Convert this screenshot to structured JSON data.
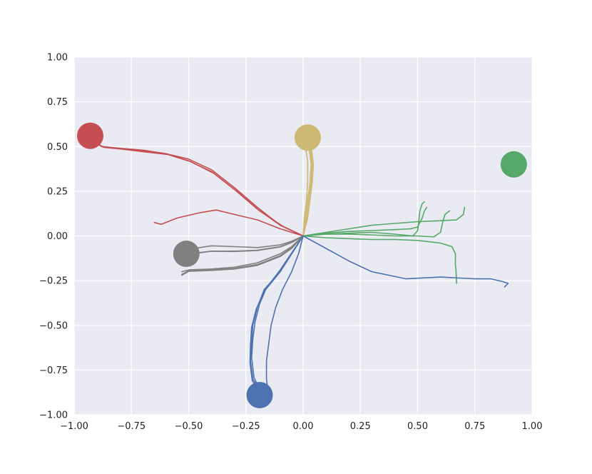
{
  "chart_data": {
    "type": "line",
    "title": "",
    "xlabel": "",
    "ylabel": "",
    "xlim": [
      -1.0,
      1.0
    ],
    "ylim": [
      -1.0,
      1.0
    ],
    "grid": true,
    "legend": "none",
    "x_ticks": [
      "−1.00",
      "−0.75",
      "−0.50",
      "−0.25",
      "0.00",
      "0.25",
      "0.50",
      "0.75",
      "1.00"
    ],
    "y_ticks": [
      "1.00",
      "0.75",
      "0.50",
      "0.25",
      "0.00",
      "−0.25",
      "−0.50",
      "−0.75",
      "−1.00"
    ],
    "colors": {
      "red": "#c44e52",
      "gold": "#ccb974",
      "green": "#55a868",
      "gray": "#808080",
      "blue": "#4c72b0",
      "background": "#eaeaf2",
      "grid": "#ffffff"
    },
    "targets": [
      {
        "color": "red",
        "x": -0.93,
        "y": 0.56
      },
      {
        "color": "gold",
        "x": 0.02,
        "y": 0.55
      },
      {
        "color": "green",
        "x": 0.92,
        "y": 0.4
      },
      {
        "color": "gray",
        "x": -0.51,
        "y": -0.1
      },
      {
        "color": "blue",
        "x": -0.19,
        "y": -0.89
      }
    ],
    "series": [
      {
        "color": "red",
        "points": [
          [
            0,
            0
          ],
          [
            -0.1,
            0.06
          ],
          [
            -0.2,
            0.15
          ],
          [
            -0.3,
            0.26
          ],
          [
            -0.4,
            0.36
          ],
          [
            -0.5,
            0.42
          ],
          [
            -0.6,
            0.46
          ],
          [
            -0.7,
            0.475
          ],
          [
            -0.8,
            0.49
          ],
          [
            -0.88,
            0.5
          ],
          [
            -0.93,
            0.54
          ]
        ]
      },
      {
        "color": "red",
        "points": [
          [
            0,
            0
          ],
          [
            -0.1,
            0.06
          ],
          [
            -0.2,
            0.16
          ],
          [
            -0.3,
            0.27
          ],
          [
            -0.4,
            0.37
          ],
          [
            -0.5,
            0.43
          ],
          [
            -0.6,
            0.46
          ],
          [
            -0.7,
            0.48
          ],
          [
            -0.8,
            0.49
          ],
          [
            -0.88,
            0.5
          ],
          [
            -0.93,
            0.55
          ]
        ]
      },
      {
        "color": "red",
        "points": [
          [
            0,
            0
          ],
          [
            -0.09,
            0.055
          ],
          [
            -0.19,
            0.14
          ],
          [
            -0.29,
            0.25
          ],
          [
            -0.39,
            0.35
          ],
          [
            -0.49,
            0.415
          ],
          [
            -0.59,
            0.455
          ],
          [
            -0.69,
            0.47
          ],
          [
            -0.79,
            0.485
          ],
          [
            -0.87,
            0.495
          ],
          [
            -0.92,
            0.53
          ]
        ]
      },
      {
        "color": "red",
        "points": [
          [
            0,
            0
          ],
          [
            -0.1,
            0.04
          ],
          [
            -0.2,
            0.09
          ],
          [
            -0.3,
            0.12
          ],
          [
            -0.38,
            0.145
          ],
          [
            -0.45,
            0.13
          ],
          [
            -0.55,
            0.1
          ],
          [
            -0.62,
            0.065
          ],
          [
            -0.65,
            0.075
          ]
        ]
      },
      {
        "color": "gold",
        "points": [
          [
            0,
            0
          ],
          [
            0.01,
            0.1
          ],
          [
            0.02,
            0.2
          ],
          [
            0.03,
            0.3
          ],
          [
            0.035,
            0.4
          ],
          [
            0.025,
            0.5
          ],
          [
            0.02,
            0.55
          ]
        ]
      },
      {
        "color": "gold",
        "points": [
          [
            0,
            0
          ],
          [
            0.015,
            0.1
          ],
          [
            0.025,
            0.2
          ],
          [
            0.035,
            0.3
          ],
          [
            0.04,
            0.4
          ],
          [
            0.03,
            0.5
          ],
          [
            0.025,
            0.55
          ]
        ]
      },
      {
        "color": "gold",
        "points": [
          [
            0,
            0
          ],
          [
            0.005,
            0.1
          ],
          [
            0.015,
            0.2
          ],
          [
            0.02,
            0.3
          ],
          [
            0.02,
            0.42
          ],
          [
            0.01,
            0.5
          ],
          [
            0.015,
            0.55
          ]
        ]
      },
      {
        "color": "gold",
        "points": [
          [
            0,
            0
          ],
          [
            0.02,
            0.1
          ],
          [
            0.03,
            0.2
          ],
          [
            0.04,
            0.3
          ],
          [
            0.045,
            0.4
          ],
          [
            0.035,
            0.5
          ],
          [
            0.03,
            0.55
          ]
        ]
      },
      {
        "color": "green",
        "points": [
          [
            0,
            0
          ],
          [
            0.1,
            0.01
          ],
          [
            0.2,
            0.015
          ],
          [
            0.3,
            0.02
          ],
          [
            0.4,
            0.01
          ],
          [
            0.48,
            0.0
          ],
          [
            0.5,
            0.03
          ],
          [
            0.505,
            0.08
          ],
          [
            0.51,
            0.14
          ],
          [
            0.52,
            0.18
          ],
          [
            0.53,
            0.19
          ]
        ]
      },
      {
        "color": "green",
        "points": [
          [
            0,
            0
          ],
          [
            0.1,
            0.015
          ],
          [
            0.2,
            0.025
          ],
          [
            0.3,
            0.03
          ],
          [
            0.4,
            0.035
          ],
          [
            0.47,
            0.04
          ],
          [
            0.5,
            0.05
          ],
          [
            0.52,
            0.1
          ],
          [
            0.53,
            0.14
          ],
          [
            0.54,
            0.16
          ]
        ]
      },
      {
        "color": "green",
        "points": [
          [
            0,
            0
          ],
          [
            0.1,
            0.02
          ],
          [
            0.2,
            0.04
          ],
          [
            0.3,
            0.06
          ],
          [
            0.4,
            0.07
          ],
          [
            0.5,
            0.08
          ],
          [
            0.6,
            0.085
          ],
          [
            0.67,
            0.09
          ],
          [
            0.7,
            0.12
          ],
          [
            0.705,
            0.16
          ]
        ]
      },
      {
        "color": "green",
        "points": [
          [
            0,
            0
          ],
          [
            0.1,
            0.01
          ],
          [
            0.2,
            0.01
          ],
          [
            0.3,
            0.005
          ],
          [
            0.4,
            0.0
          ],
          [
            0.5,
            0.0
          ],
          [
            0.57,
            -0.005
          ],
          [
            0.6,
            0.02
          ],
          [
            0.61,
            0.08
          ],
          [
            0.62,
            0.12
          ],
          [
            0.64,
            0.14
          ]
        ]
      },
      {
        "color": "green",
        "points": [
          [
            0,
            0
          ],
          [
            0.1,
            -0.01
          ],
          [
            0.2,
            -0.015
          ],
          [
            0.3,
            -0.02
          ],
          [
            0.4,
            -0.02
          ],
          [
            0.5,
            -0.025
          ],
          [
            0.6,
            -0.04
          ],
          [
            0.65,
            -0.06
          ],
          [
            0.665,
            -0.1
          ],
          [
            0.665,
            -0.16
          ],
          [
            0.668,
            -0.2
          ],
          [
            0.67,
            -0.265
          ]
        ]
      },
      {
        "color": "gray",
        "points": [
          [
            0,
            0
          ],
          [
            -0.05,
            -0.03
          ],
          [
            -0.1,
            -0.05
          ],
          [
            -0.2,
            -0.065
          ],
          [
            -0.3,
            -0.06
          ],
          [
            -0.4,
            -0.055
          ],
          [
            -0.5,
            -0.075
          ]
        ]
      },
      {
        "color": "gray",
        "points": [
          [
            0,
            0
          ],
          [
            -0.05,
            -0.035
          ],
          [
            -0.1,
            -0.06
          ],
          [
            -0.2,
            -0.08
          ],
          [
            -0.3,
            -0.085
          ],
          [
            -0.4,
            -0.085
          ],
          [
            -0.5,
            -0.1
          ]
        ]
      },
      {
        "color": "gray",
        "points": [
          [
            0,
            0
          ],
          [
            -0.05,
            -0.037
          ],
          [
            -0.1,
            -0.062
          ],
          [
            -0.2,
            -0.082
          ],
          [
            -0.3,
            -0.087
          ],
          [
            -0.4,
            -0.086
          ],
          [
            -0.5,
            -0.103
          ]
        ]
      },
      {
        "color": "gray",
        "points": [
          [
            0,
            0
          ],
          [
            -0.05,
            -0.06
          ],
          [
            -0.1,
            -0.1
          ],
          [
            -0.2,
            -0.15
          ],
          [
            -0.3,
            -0.175
          ],
          [
            -0.4,
            -0.185
          ],
          [
            -0.5,
            -0.19
          ],
          [
            -0.53,
            -0.2
          ]
        ]
      },
      {
        "color": "gray",
        "points": [
          [
            0,
            0
          ],
          [
            -0.05,
            -0.065
          ],
          [
            -0.1,
            -0.11
          ],
          [
            -0.2,
            -0.16
          ],
          [
            -0.3,
            -0.182
          ],
          [
            -0.4,
            -0.19
          ],
          [
            -0.5,
            -0.195
          ],
          [
            -0.53,
            -0.215
          ]
        ]
      },
      {
        "color": "gray",
        "points": [
          [
            0,
            0
          ],
          [
            -0.05,
            -0.07
          ],
          [
            -0.1,
            -0.115
          ],
          [
            -0.2,
            -0.165
          ],
          [
            -0.3,
            -0.185
          ],
          [
            -0.4,
            -0.193
          ],
          [
            -0.5,
            -0.198
          ],
          [
            -0.53,
            -0.22
          ]
        ]
      },
      {
        "color": "blue",
        "points": [
          [
            0,
            0
          ],
          [
            -0.1,
            -0.2
          ],
          [
            -0.17,
            -0.3
          ],
          [
            -0.2,
            -0.4
          ],
          [
            -0.22,
            -0.5
          ],
          [
            -0.225,
            -0.6
          ],
          [
            -0.23,
            -0.7
          ],
          [
            -0.22,
            -0.8
          ],
          [
            -0.19,
            -0.86
          ]
        ]
      },
      {
        "color": "blue",
        "points": [
          [
            0,
            0
          ],
          [
            -0.1,
            -0.19
          ],
          [
            -0.16,
            -0.29
          ],
          [
            -0.19,
            -0.38
          ],
          [
            -0.21,
            -0.48
          ],
          [
            -0.22,
            -0.58
          ],
          [
            -0.225,
            -0.68
          ],
          [
            -0.215,
            -0.79
          ],
          [
            -0.19,
            -0.86
          ]
        ]
      },
      {
        "color": "blue",
        "points": [
          [
            0,
            0
          ],
          [
            -0.1,
            -0.2
          ],
          [
            -0.17,
            -0.31
          ],
          [
            -0.205,
            -0.41
          ],
          [
            -0.225,
            -0.51
          ],
          [
            -0.23,
            -0.61
          ],
          [
            -0.232,
            -0.71
          ],
          [
            -0.222,
            -0.81
          ],
          [
            -0.19,
            -0.87
          ]
        ]
      },
      {
        "color": "blue",
        "points": [
          [
            0,
            0
          ],
          [
            -0.02,
            -0.1
          ],
          [
            -0.05,
            -0.2
          ],
          [
            -0.09,
            -0.3
          ],
          [
            -0.12,
            -0.4
          ],
          [
            -0.14,
            -0.5
          ],
          [
            -0.15,
            -0.6
          ],
          [
            -0.16,
            -0.7
          ],
          [
            -0.16,
            -0.8
          ],
          [
            -0.155,
            -0.85
          ]
        ]
      },
      {
        "color": "blue",
        "points": [
          [
            0,
            0
          ],
          [
            0.1,
            -0.07
          ],
          [
            0.2,
            -0.14
          ],
          [
            0.3,
            -0.2
          ],
          [
            0.45,
            -0.24
          ],
          [
            0.6,
            -0.23
          ],
          [
            0.75,
            -0.24
          ],
          [
            0.82,
            -0.24
          ],
          [
            0.87,
            -0.255
          ],
          [
            0.895,
            -0.265
          ],
          [
            0.88,
            -0.285
          ]
        ]
      }
    ]
  }
}
